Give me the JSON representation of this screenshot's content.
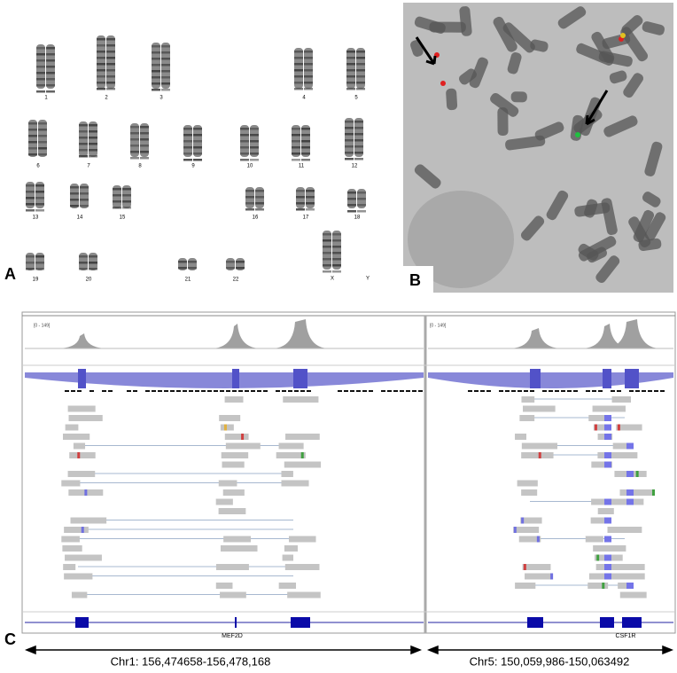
{
  "panel_a": {
    "label": "A",
    "chromosomes": [
      "1",
      "2",
      "3",
      "4",
      "5",
      "6",
      "7",
      "8",
      "9",
      "10",
      "11",
      "12",
      "13",
      "14",
      "15",
      "16",
      "17",
      "18",
      "19",
      "20",
      "21",
      "22",
      "X",
      "Y"
    ]
  },
  "panel_b": {
    "label": "B"
  },
  "panel_c": {
    "label": "C",
    "tracks": [
      {
        "range": "[0 - 149]",
        "gene": "MEF2D",
        "coordinates": "Chr1: 156,474658-156,478,168"
      },
      {
        "range": "[0 - 149]",
        "gene": "CSF1R",
        "coordinates": "Chr5: 150,059,986-150,063492"
      }
    ]
  }
}
